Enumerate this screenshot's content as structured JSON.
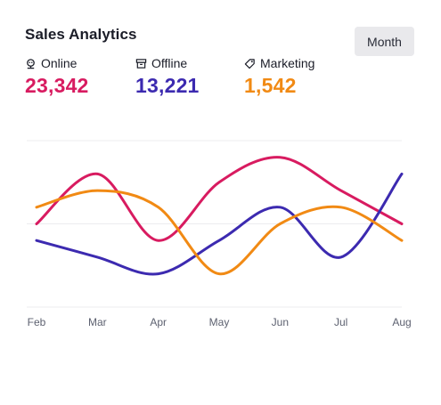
{
  "card": {
    "title": "Sales Analytics",
    "period_button": "Month"
  },
  "stats": [
    {
      "label": "Online",
      "value": "23,342",
      "color": "#d81b60",
      "icon": "bot-icon"
    },
    {
      "label": "Offline",
      "value": "13,221",
      "color": "#3c2ab0",
      "icon": "archive-icon"
    },
    {
      "label": "Marketing",
      "value": "1,542",
      "color": "#f18a14",
      "icon": "tag-icon"
    }
  ],
  "chart_data": {
    "type": "line",
    "categories": [
      "Feb",
      "Mar",
      "Apr",
      "May",
      "Jun",
      "Jul",
      "Aug"
    ],
    "ylim": [
      0,
      100
    ],
    "grid": true,
    "legend": "none",
    "series": [
      {
        "name": "Online",
        "color": "#d81b60",
        "values": [
          50,
          80,
          40,
          75,
          90,
          70,
          50
        ]
      },
      {
        "name": "Offline",
        "color": "#3c2ab0",
        "values": [
          40,
          30,
          20,
          40,
          60,
          30,
          80
        ]
      },
      {
        "name": "Marketing",
        "color": "#f18a14",
        "values": [
          60,
          70,
          60,
          20,
          50,
          60,
          40
        ]
      }
    ]
  }
}
